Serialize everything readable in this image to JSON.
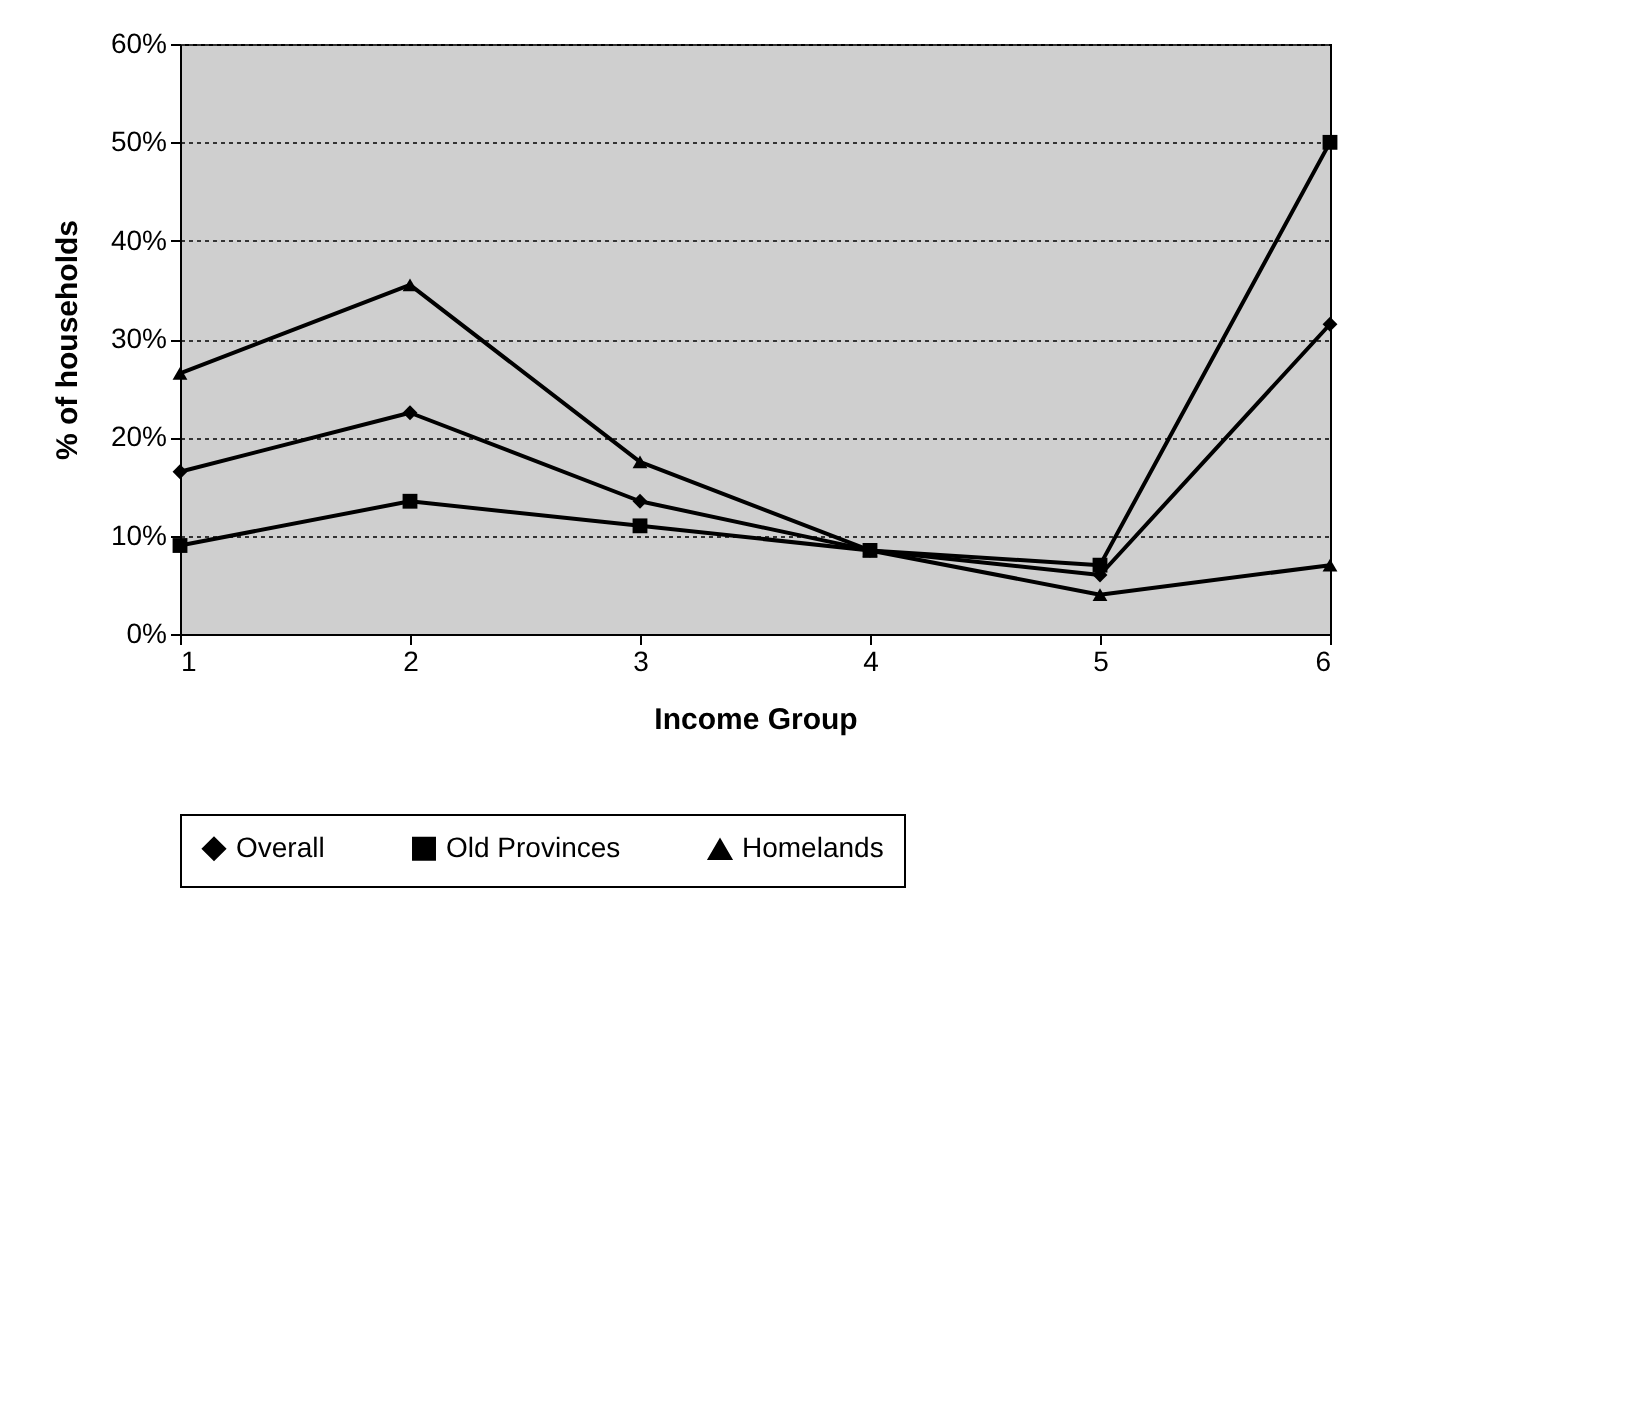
{
  "chart_data": {
    "type": "line",
    "xlabel": "Income Group",
    "ylabel": "% of households",
    "x": [
      1,
      2,
      3,
      4,
      5,
      6
    ],
    "xlim": [
      1,
      6
    ],
    "xticks": [
      1,
      2,
      3,
      4,
      5,
      6
    ],
    "ylim": [
      0,
      60
    ],
    "yticks": [
      {
        "value": 0,
        "label": "0%"
      },
      {
        "value": 10,
        "label": "10%"
      },
      {
        "value": 20,
        "label": "20%"
      },
      {
        "value": 30,
        "label": "30%"
      },
      {
        "value": 40,
        "label": "40%"
      },
      {
        "value": 50,
        "label": "50%"
      },
      {
        "value": 60,
        "label": "60%"
      }
    ],
    "series": [
      {
        "name": "Overall",
        "color": "#000000",
        "marker": "diamond",
        "values": [
          16.5,
          22.5,
          13.5,
          8.5,
          6,
          31.5
        ]
      },
      {
        "name": "Old Provinces",
        "color": "#000000",
        "marker": "square",
        "values": [
          9,
          13.5,
          11,
          8.5,
          7,
          50
        ]
      },
      {
        "name": "Homelands",
        "color": "#000000",
        "marker": "triangle",
        "values": [
          26.5,
          35.5,
          17.5,
          8.5,
          4,
          7
        ]
      }
    ],
    "grid": "y",
    "legend": "bottom",
    "line_style": "solid"
  }
}
